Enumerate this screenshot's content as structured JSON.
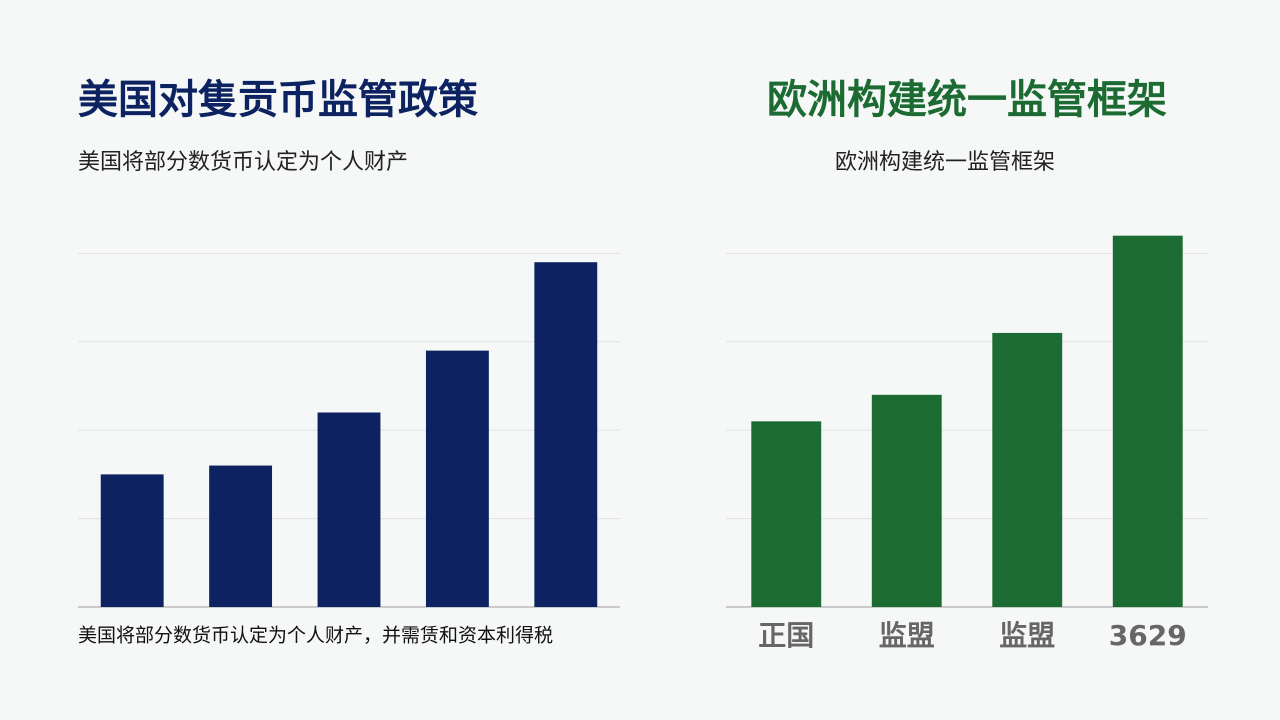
{
  "chart_data": [
    {
      "type": "bar",
      "title": "美国对隻贡币监管政策",
      "subtitle": "美国将部分数货币认定为个人财产",
      "note": "美国将部分数货币认定为个人财产，并需赁和资本利得税",
      "categories": [
        null,
        null,
        null,
        null,
        null
      ],
      "values": [
        1.5,
        1.6,
        2.2,
        2.9,
        3.9
      ],
      "color": "#0d2260",
      "title_color": "#0d2260",
      "ylim": [
        0,
        4.4
      ],
      "yticks": [
        0,
        1,
        2,
        3,
        4
      ],
      "grid": true
    },
    {
      "type": "bar",
      "title": "欧洲构建统一监管框架",
      "subtitle": "欧洲构建统一监管框架",
      "categories": [
        "正国",
        "监盟",
        "监盟",
        "3629"
      ],
      "values": [
        2.1,
        2.4,
        3.1,
        4.2
      ],
      "color": "#1c6b32",
      "title_color": "#1c6b32",
      "ylim": [
        0,
        4.4
      ],
      "yticks": [
        0,
        1,
        2,
        3,
        4
      ],
      "grid": true
    }
  ]
}
